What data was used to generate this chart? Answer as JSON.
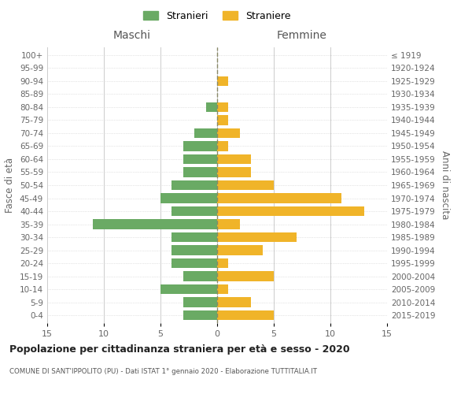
{
  "age_groups": [
    "0-4",
    "5-9",
    "10-14",
    "15-19",
    "20-24",
    "25-29",
    "30-34",
    "35-39",
    "40-44",
    "45-49",
    "50-54",
    "55-59",
    "60-64",
    "65-69",
    "70-74",
    "75-79",
    "80-84",
    "85-89",
    "90-94",
    "95-99",
    "100+"
  ],
  "birth_years": [
    "2015-2019",
    "2010-2014",
    "2005-2009",
    "2000-2004",
    "1995-1999",
    "1990-1994",
    "1985-1989",
    "1980-1984",
    "1975-1979",
    "1970-1974",
    "1965-1969",
    "1960-1964",
    "1955-1959",
    "1950-1954",
    "1945-1949",
    "1940-1944",
    "1935-1939",
    "1930-1934",
    "1925-1929",
    "1920-1924",
    "≤ 1919"
  ],
  "maschi": [
    3,
    3,
    5,
    3,
    4,
    4,
    4,
    11,
    4,
    5,
    4,
    3,
    3,
    3,
    2,
    0,
    1,
    0,
    0,
    0,
    0
  ],
  "femmine": [
    5,
    3,
    1,
    5,
    1,
    4,
    7,
    2,
    13,
    11,
    5,
    3,
    3,
    1,
    2,
    1,
    1,
    0,
    1,
    0,
    0
  ],
  "color_maschi": "#6aaa64",
  "color_femmine": "#f0b429",
  "title": "Popolazione per cittadinanza straniera per età e sesso - 2020",
  "subtitle": "COMUNE DI SANT'IPPOLITO (PU) - Dati ISTAT 1° gennaio 2020 - Elaborazione TUTTITALIA.IT",
  "xlabel_left": "Maschi",
  "xlabel_right": "Femmine",
  "ylabel_left": "Fasce di età",
  "ylabel_right": "Anni di nascita",
  "legend_maschi": "Stranieri",
  "legend_femmine": "Straniere",
  "xlim": 15,
  "background_color": "#ffffff",
  "grid_color": "#cccccc"
}
